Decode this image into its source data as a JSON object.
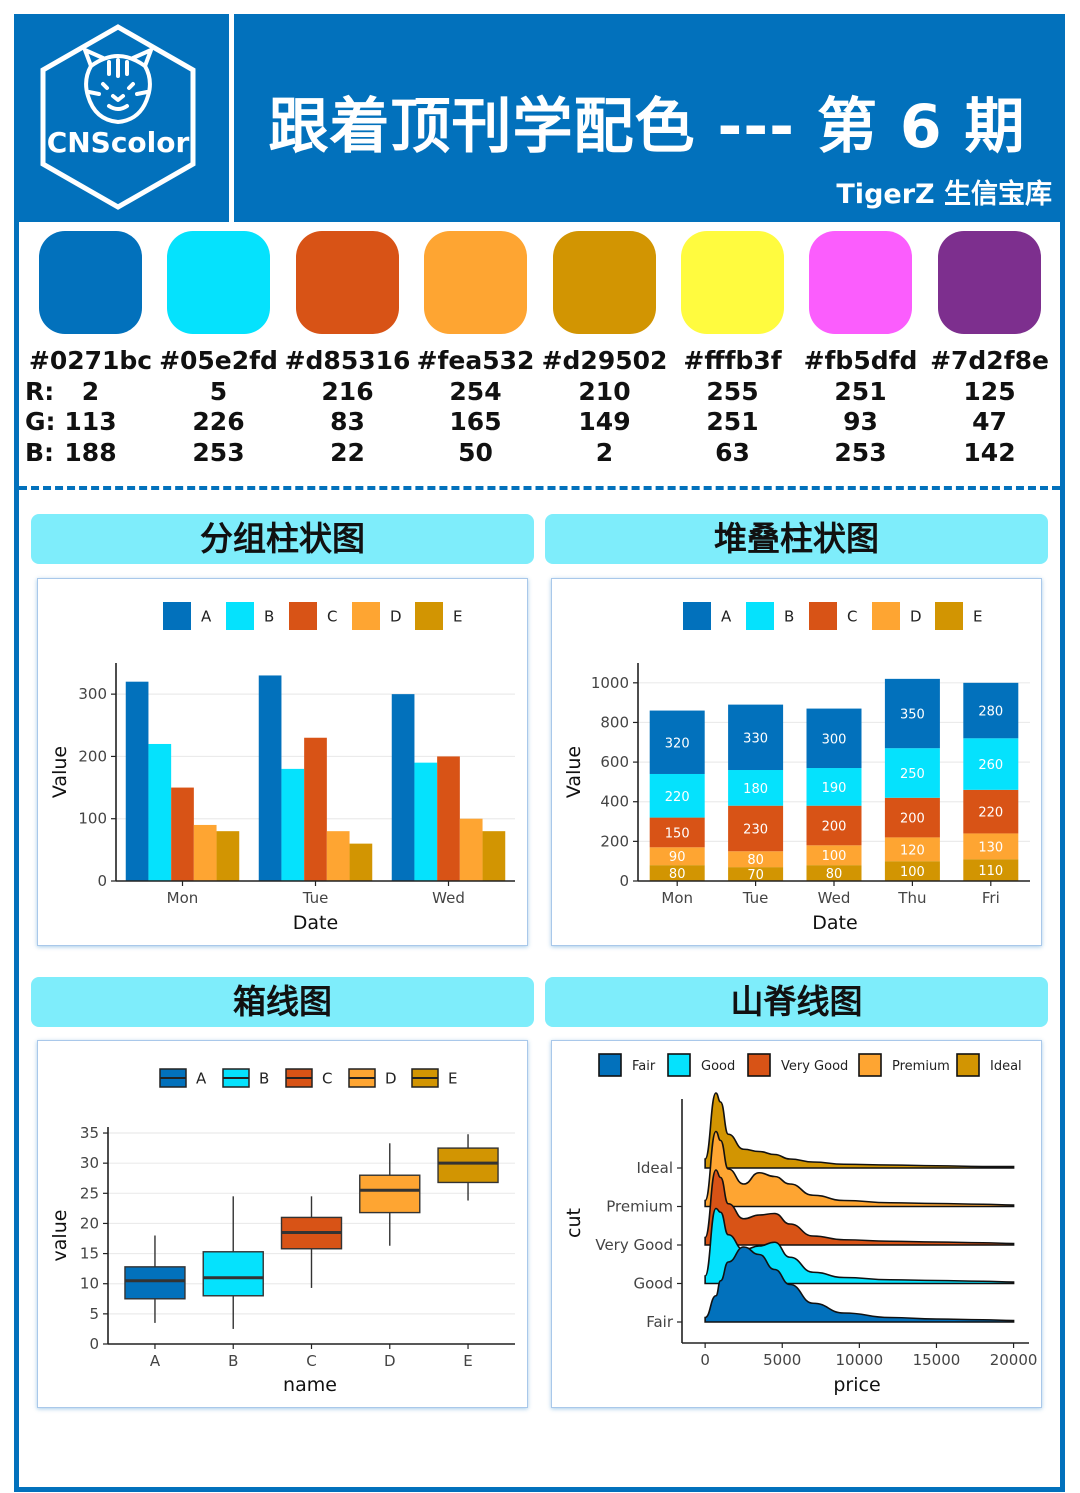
{
  "header": {
    "logo_text": "CNScolor",
    "title": "跟着顶刊学配色 --- 第 6 期",
    "subtitle": "TigerZ 生信宝库"
  },
  "palette": [
    {
      "hex": "#0271bc",
      "r": "2",
      "g": "113",
      "b": "188"
    },
    {
      "hex": "#05e2fd",
      "r": "5",
      "g": "226",
      "b": "253"
    },
    {
      "hex": "#d85316",
      "r": "216",
      "g": "83",
      "b": "22"
    },
    {
      "hex": "#fea532",
      "r": "254",
      "g": "165",
      "b": "50"
    },
    {
      "hex": "#d29502",
      "r": "210",
      "g": "149",
      "b": "2"
    },
    {
      "hex": "#fffb3f",
      "r": "255",
      "g": "251",
      "b": "63"
    },
    {
      "hex": "#fb5dfd",
      "r": "251",
      "g": "93",
      "b": "253"
    },
    {
      "hex": "#7d2f8e",
      "r": "125",
      "g": "47",
      "b": "142"
    }
  ],
  "rgb_labels": {
    "r": "R:",
    "g": "G:",
    "b": "B:"
  },
  "sections": {
    "grouped": "分组柱状图",
    "stacked": "堆叠柱状图",
    "box": "箱线图",
    "ridge": "山脊线图"
  },
  "chart_data": [
    {
      "type": "bar",
      "variant": "grouped",
      "categories": [
        "Mon",
        "Tue",
        "Wed"
      ],
      "series": [
        {
          "name": "A",
          "color": "#0271bc",
          "values": [
            320,
            330,
            300
          ]
        },
        {
          "name": "B",
          "color": "#05e2fd",
          "values": [
            220,
            180,
            190
          ]
        },
        {
          "name": "C",
          "color": "#d85316",
          "values": [
            150,
            230,
            200
          ]
        },
        {
          "name": "D",
          "color": "#fea532",
          "values": [
            90,
            80,
            100
          ]
        },
        {
          "name": "E",
          "color": "#d29502",
          "values": [
            80,
            60,
            80
          ]
        }
      ],
      "xlabel": "Date",
      "ylabel": "Value",
      "ylim": [
        0,
        350
      ],
      "yticks": [
        0,
        100,
        200,
        300
      ],
      "grid": "horizontal",
      "legend": "top"
    },
    {
      "type": "bar",
      "variant": "stacked",
      "categories": [
        "Mon",
        "Tue",
        "Wed",
        "Thu",
        "Fri"
      ],
      "series": [
        {
          "name": "E",
          "color": "#d29502",
          "values": [
            80,
            70,
            80,
            100,
            110
          ]
        },
        {
          "name": "D",
          "color": "#fea532",
          "values": [
            90,
            80,
            100,
            120,
            130
          ]
        },
        {
          "name": "C",
          "color": "#d85316",
          "values": [
            150,
            230,
            200,
            200,
            220
          ]
        },
        {
          "name": "B",
          "color": "#05e2fd",
          "values": [
            220,
            180,
            190,
            250,
            260
          ]
        },
        {
          "name": "A",
          "color": "#0271bc",
          "values": [
            320,
            330,
            300,
            350,
            280
          ]
        }
      ],
      "legend_order": [
        "A",
        "B",
        "C",
        "D",
        "E"
      ],
      "xlabel": "Date",
      "ylabel": "Value",
      "ylim": [
        0,
        1100
      ],
      "yticks": [
        0,
        200,
        400,
        600,
        800,
        1000
      ],
      "grid": "horizontal",
      "legend": "top",
      "data_labels": true
    },
    {
      "type": "box",
      "categories": [
        "A",
        "B",
        "C",
        "D",
        "E"
      ],
      "series": [
        {
          "name": "A",
          "color": "#0271bc",
          "whisker_low": 3.5,
          "q1": 7.5,
          "median": 10.5,
          "q3": 12.8,
          "whisker_high": 18
        },
        {
          "name": "B",
          "color": "#05e2fd",
          "whisker_low": 2.5,
          "q1": 8,
          "median": 11,
          "q3": 15.3,
          "whisker_high": 24.5
        },
        {
          "name": "C",
          "color": "#d85316",
          "whisker_low": 9.3,
          "q1": 15.8,
          "median": 18.5,
          "q3": 21,
          "whisker_high": 24.5
        },
        {
          "name": "D",
          "color": "#fea532",
          "whisker_low": 16.3,
          "q1": 21.8,
          "median": 25.5,
          "q3": 28,
          "whisker_high": 33.3
        },
        {
          "name": "E",
          "color": "#d29502",
          "whisker_low": 23.8,
          "q1": 26.8,
          "median": 30,
          "q3": 32.5,
          "whisker_high": 34.8
        }
      ],
      "xlabel": "name",
      "ylabel": "value",
      "ylim": [
        0,
        36
      ],
      "yticks": [
        0,
        5,
        10,
        15,
        20,
        25,
        30,
        35
      ],
      "grid": "horizontal",
      "legend": "top"
    },
    {
      "type": "area",
      "variant": "ridgeline",
      "categories": [
        "Fair",
        "Good",
        "Very Good",
        "Premium",
        "Ideal"
      ],
      "x": [
        0,
        700,
        1000,
        1500,
        2500,
        3500,
        4500,
        5500,
        7000,
        9000,
        12000,
        15000,
        18000,
        20000
      ],
      "series": [
        {
          "name": "Fair",
          "color": "#0271bc",
          "values": [
            0.06,
            0.35,
            0.55,
            0.8,
            1.0,
            0.9,
            0.7,
            0.5,
            0.25,
            0.12,
            0.06,
            0.04,
            0.03,
            0.02
          ]
        },
        {
          "name": "Good",
          "color": "#05e2fd",
          "values": [
            0.1,
            1.0,
            0.95,
            0.65,
            0.45,
            0.5,
            0.55,
            0.35,
            0.15,
            0.08,
            0.05,
            0.04,
            0.03,
            0.02
          ]
        },
        {
          "name": "Very Good",
          "color": "#d85316",
          "values": [
            0.1,
            1.0,
            0.9,
            0.55,
            0.35,
            0.4,
            0.42,
            0.28,
            0.12,
            0.07,
            0.05,
            0.04,
            0.03,
            0.02
          ]
        },
        {
          "name": "Premium",
          "color": "#fea532",
          "values": [
            0.08,
            1.0,
            0.88,
            0.5,
            0.3,
            0.45,
            0.4,
            0.3,
            0.15,
            0.08,
            0.05,
            0.04,
            0.03,
            0.02
          ]
        },
        {
          "name": "Ideal",
          "color": "#d29502",
          "values": [
            0.12,
            1.0,
            0.88,
            0.45,
            0.25,
            0.22,
            0.18,
            0.12,
            0.08,
            0.05,
            0.04,
            0.03,
            0.02,
            0.02
          ]
        }
      ],
      "xlabel": "price",
      "ylabel": "cut",
      "xlim": [
        -1500,
        21000
      ],
      "xticks": [
        0,
        5000,
        10000,
        15000,
        20000
      ],
      "legend": "top"
    }
  ]
}
